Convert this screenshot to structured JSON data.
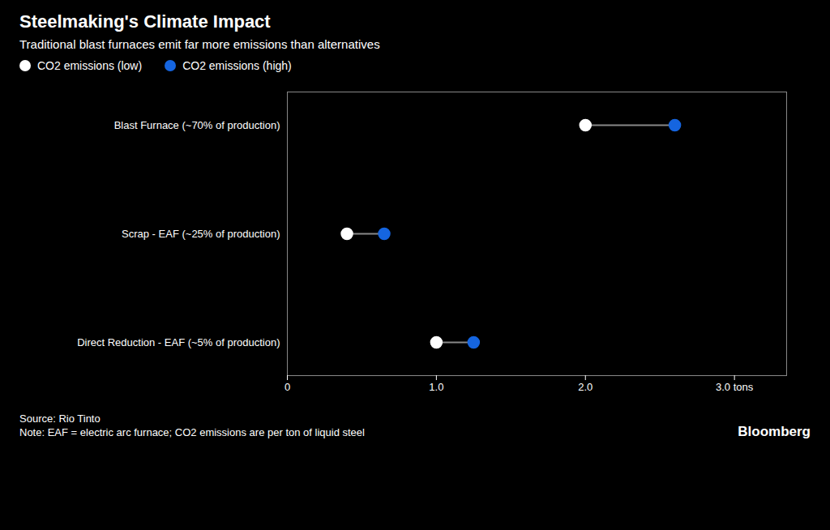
{
  "chart_data": {
    "type": "dumbbell",
    "title": "Steelmaking's Climate Impact",
    "subtitle": "Traditional blast furnaces emit far more emissions than alternatives",
    "categories": [
      "Blast Furnace (~70% of production)",
      "Scrap - EAF (~25% of production)",
      "Direct Reduction - EAF (~5% of production)"
    ],
    "series": [
      {
        "name": "CO2 emissions (low)",
        "color": "#ffffff",
        "values": [
          2.0,
          0.4,
          1.0
        ]
      },
      {
        "name": "CO2 emissions (high)",
        "color": "#1565e0",
        "values": [
          2.6,
          0.65,
          1.25
        ]
      }
    ],
    "color": "#888888",
    "orientation": "horizontal",
    "xlim": [
      0.0,
      3.35
    ],
    "xticks": [
      0,
      {
        "value": 1.0,
        "label": "1.0"
      },
      {
        "value": 2.0,
        "label": "2.0"
      },
      {
        "value": 3.0,
        "label": "3.0 tons"
      }
    ],
    "grid": false,
    "legend": "top-left",
    "source": "Source: Rio Tinto",
    "note": "Note: EAF = electric arc furnace; CO2 emissions are per ton of liquid steel",
    "credit": "Bloomberg"
  }
}
